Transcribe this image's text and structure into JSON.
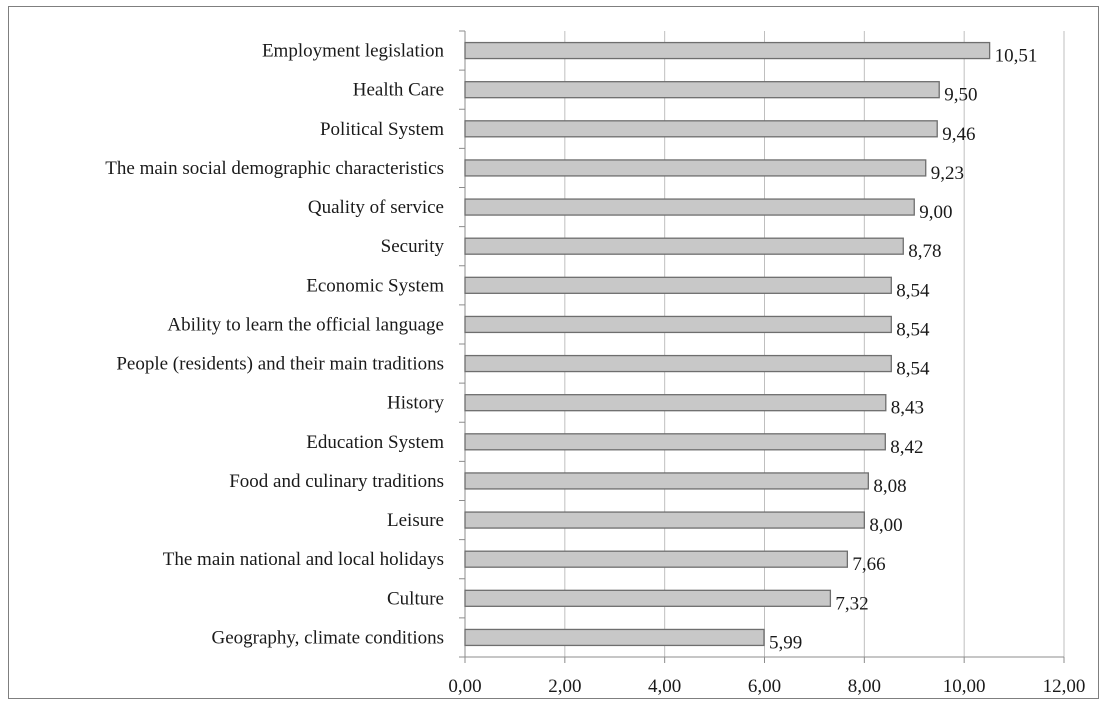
{
  "chart_data": {
    "type": "bar",
    "orientation": "horizontal",
    "title": "",
    "xlabel": "",
    "ylabel": "",
    "xlim": [
      0,
      12
    ],
    "x_ticks": [
      "0,00",
      "2,00",
      "4,00",
      "6,00",
      "8,00",
      "10,00",
      "12,00"
    ],
    "grid": "vertical",
    "bar_color": "#c8c8c8",
    "bar_edge_color": "#6e6e6e",
    "categories": [
      "Employment legislation",
      "Health Care",
      "Political System",
      "The main social demographic characteristics",
      "Quality of service",
      "Security",
      "Economic System",
      "Ability to learn the official language",
      "People (residents) and their main traditions",
      "History",
      "Education System",
      "Food and culinary traditions",
      "Leisure",
      "The main national and local holidays",
      "Culture",
      "Geography, climate conditions"
    ],
    "values": [
      10.51,
      9.5,
      9.46,
      9.23,
      9.0,
      8.78,
      8.54,
      8.54,
      8.54,
      8.43,
      8.42,
      8.08,
      8.0,
      7.66,
      7.32,
      5.99
    ],
    "value_labels": [
      "10,51",
      "9,50",
      "9,46",
      "9,23",
      "9,00",
      "8,78",
      "8,54",
      "8,54",
      "8,54",
      "8,43",
      "8,42",
      "8,08",
      "8,00",
      "7,66",
      "7,32",
      "5,99"
    ]
  }
}
